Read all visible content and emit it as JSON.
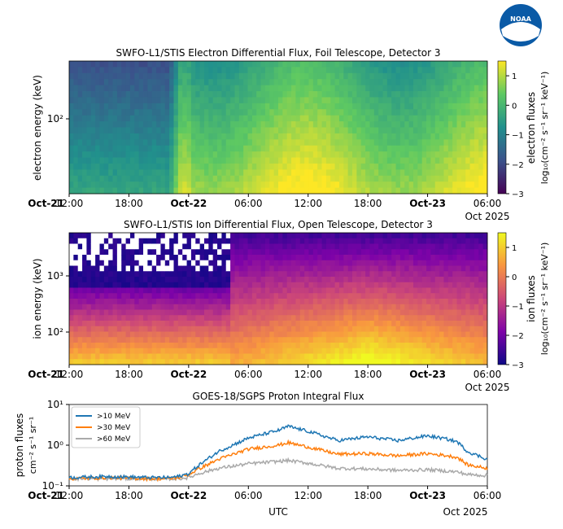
{
  "logo": {
    "text": "NOAA"
  },
  "x_ticks": [
    "12:00",
    "18:00",
    "Oct-22",
    "06:00",
    "12:00",
    "18:00",
    "Oct-23",
    "06:00"
  ],
  "x_tick_prefix": "Oct-21",
  "x_corner": "Oct 2025",
  "bottom_xlabel": "UTC",
  "chart_data": [
    {
      "type": "heatmap",
      "title": "SWFO-L1/STIS Electron Differential Flux, Foil Telescope, Detector 3",
      "ylabel": "electron energy (keV)",
      "ytick_labels": [
        "10²"
      ],
      "y_scale": "log",
      "colorbar_label": "electron fluxes",
      "colorbar_units": "log₁₀(cm⁻² s⁻¹ sr⁻¹ keV⁻¹)",
      "colorbar_ticks": [
        "1",
        "0",
        "−1",
        "−2",
        "−3"
      ],
      "colorbar_range": [
        -3,
        1.5
      ],
      "colormap": "viridis",
      "x_range_hours": [
        0,
        42
      ]
    },
    {
      "type": "heatmap",
      "title": "SWFO-L1/STIS Ion Differential Flux, Open Telescope, Detector 3",
      "ylabel": "ion energy (keV)",
      "ytick_labels": [
        "10³",
        "10²"
      ],
      "y_scale": "log",
      "colorbar_label": "ion fluxes",
      "colorbar_units": "log₁₀(cm⁻² s⁻¹ sr⁻¹ keV⁻¹)",
      "colorbar_ticks": [
        "1",
        "0",
        "−1",
        "−2",
        "−3"
      ],
      "colorbar_range": [
        -3,
        1.5
      ],
      "colormap": "plasma",
      "x_range_hours": [
        0,
        42
      ]
    },
    {
      "type": "line",
      "title": "GOES-18/SGPS Proton Integral Flux",
      "ylabel": "proton fluxes",
      "ylabel_units": "cm⁻² s⁻¹ sr⁻¹",
      "ytick_labels": [
        "10¹",
        "10⁰",
        "10⁻¹"
      ],
      "y_scale": "log",
      "ylim": [
        0.1,
        10
      ],
      "x_hours": [
        0,
        4,
        8,
        10,
        11,
        12,
        13,
        15,
        18,
        21,
        22,
        24,
        27,
        30,
        33,
        36,
        38,
        39,
        40,
        42
      ],
      "legend_position": "top-left",
      "series": [
        {
          "name": ">10 MeV",
          "color": "#1f77b4",
          "values": [
            0.16,
            0.17,
            0.16,
            0.16,
            0.17,
            0.2,
            0.32,
            0.7,
            1.5,
            2.3,
            2.9,
            2.2,
            1.3,
            1.6,
            1.3,
            1.7,
            1.4,
            1.2,
            0.7,
            0.45
          ]
        },
        {
          "name": ">30 MeV",
          "color": "#ff7f0e",
          "values": [
            0.15,
            0.16,
            0.15,
            0.15,
            0.16,
            0.19,
            0.26,
            0.45,
            0.8,
            1.0,
            1.15,
            0.9,
            0.6,
            0.62,
            0.55,
            0.62,
            0.55,
            0.5,
            0.33,
            0.27
          ]
        },
        {
          "name": ">60 MeV",
          "color": "#aaaaaa",
          "values": [
            0.15,
            0.15,
            0.15,
            0.15,
            0.15,
            0.16,
            0.2,
            0.27,
            0.35,
            0.4,
            0.42,
            0.36,
            0.27,
            0.26,
            0.24,
            0.25,
            0.23,
            0.22,
            0.19,
            0.18
          ]
        }
      ]
    }
  ]
}
